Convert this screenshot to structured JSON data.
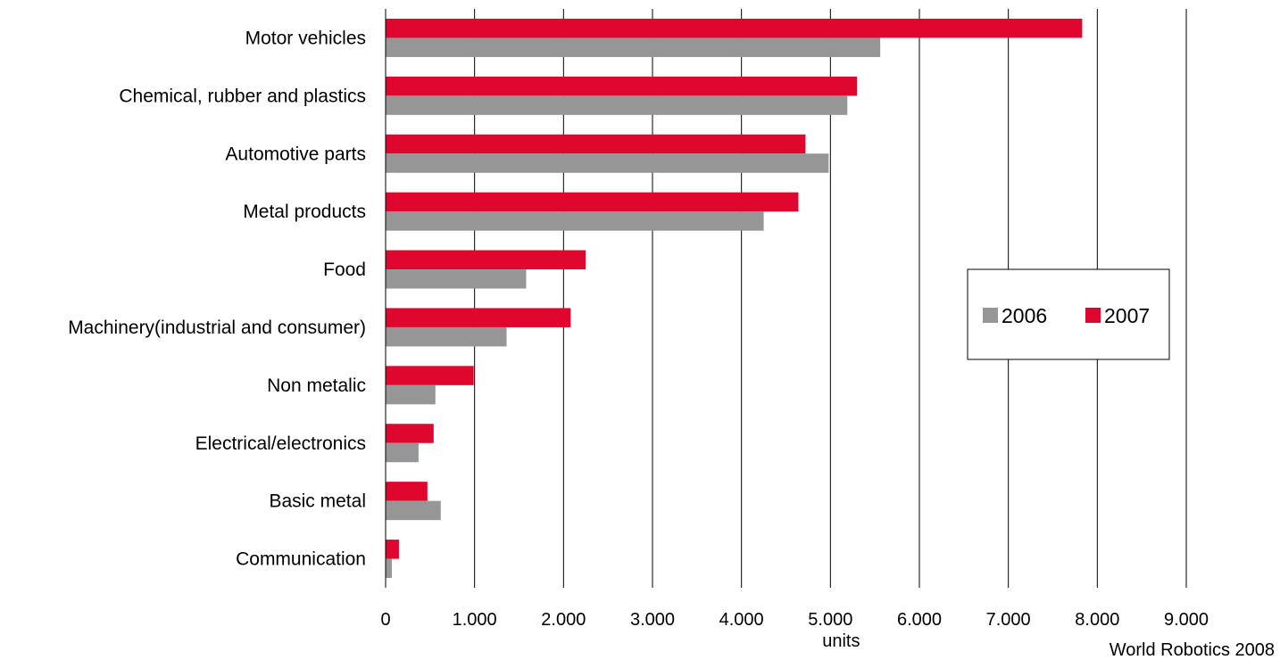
{
  "chart_data": {
    "type": "bar",
    "orientation": "horizontal",
    "categories": [
      "Motor vehicles",
      "Chemical, rubber and plastics",
      "Automotive parts",
      "Metal products",
      "Food ",
      "Machinery(industrial and consumer)",
      "Non metalic",
      "Electrical/electronics",
      "Basic metal",
      "Communication "
    ],
    "series": [
      {
        "name": "2006",
        "color": "#969696",
        "values": [
          5560,
          5190,
          4980,
          4250,
          1580,
          1360,
          560,
          370,
          620,
          70
        ]
      },
      {
        "name": "2007",
        "color": "#e0072f",
        "values": [
          7830,
          5300,
          4720,
          4640,
          2250,
          2080,
          990,
          540,
          470,
          150
        ]
      }
    ],
    "xlim": [
      0,
      9000
    ],
    "xticks": [
      0,
      1000,
      2000,
      3000,
      4000,
      5000,
      6000,
      7000,
      8000,
      9000
    ],
    "xtick_labels": [
      "0",
      "1.000",
      "2.000",
      "3.000",
      "4.000",
      "5.000",
      "6.000",
      "7.000",
      "8.000",
      "9.000"
    ],
    "xlabel": "units",
    "ylabel": "",
    "title": "",
    "grid": "vertical",
    "legend_position": "right-middle"
  },
  "source_note": "World Robotics 2008"
}
